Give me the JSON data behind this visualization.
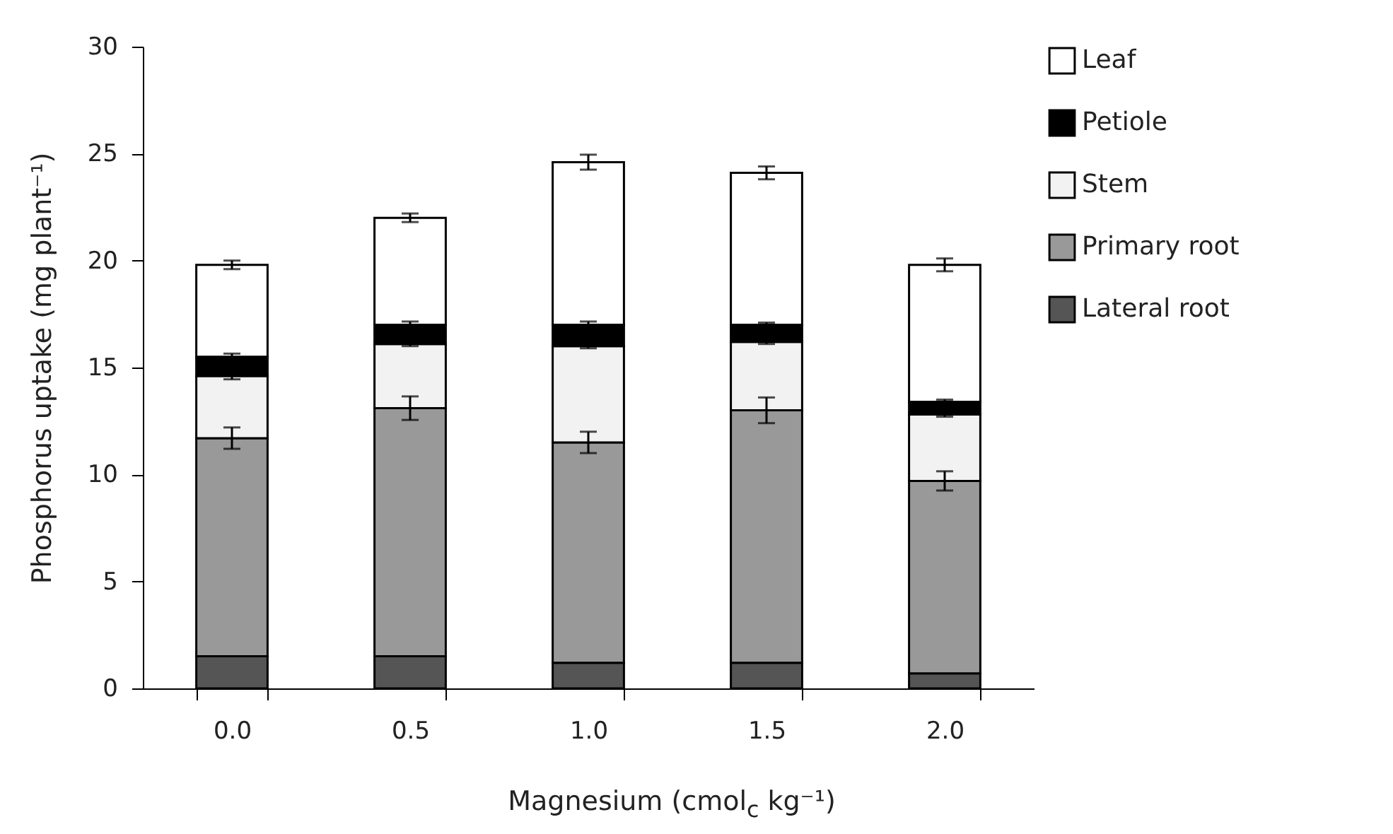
{
  "chart_data": {
    "type": "bar",
    "stacked": true,
    "xlabel": "Magnesium (cmol$_{c}$ kg⁻¹)",
    "ylabel": "Phosphorus  uptake (mg plant⁻¹)",
    "categories": [
      "0.0",
      "0.5",
      "1.0",
      "1.5",
      "2.0"
    ],
    "series": [
      {
        "name": "Lateral root",
        "color": "#555555",
        "values": [
          1.5,
          1.5,
          1.2,
          1.2,
          0.7
        ]
      },
      {
        "name": "Primary root",
        "color": "#999999",
        "values": [
          10.2,
          11.6,
          10.3,
          11.8,
          9.0
        ],
        "errors": [
          0.5,
          0.55,
          0.5,
          0.6,
          0.45
        ]
      },
      {
        "name": "Stem",
        "color": "#f2f2f2",
        "values": [
          2.9,
          3.0,
          4.5,
          3.2,
          3.1
        ],
        "errors": [
          0.15,
          0.1,
          0.1,
          0.1,
          0.1
        ]
      },
      {
        "name": "Petiole",
        "color": "#000000",
        "values": [
          0.9,
          0.9,
          1.0,
          0.8,
          0.6
        ],
        "errors": [
          0.15,
          0.15,
          0.15,
          0.1,
          0.1
        ]
      },
      {
        "name": "Leaf",
        "color": "#ffffff",
        "values": [
          4.3,
          5.0,
          7.6,
          7.1,
          6.4
        ],
        "errors": [
          0.2,
          0.2,
          0.35,
          0.3,
          0.3
        ]
      }
    ],
    "ylim": [
      0,
      30
    ],
    "yticks": [
      0,
      5,
      10,
      15,
      20,
      25,
      30
    ],
    "grid": false,
    "legend": "top right"
  }
}
